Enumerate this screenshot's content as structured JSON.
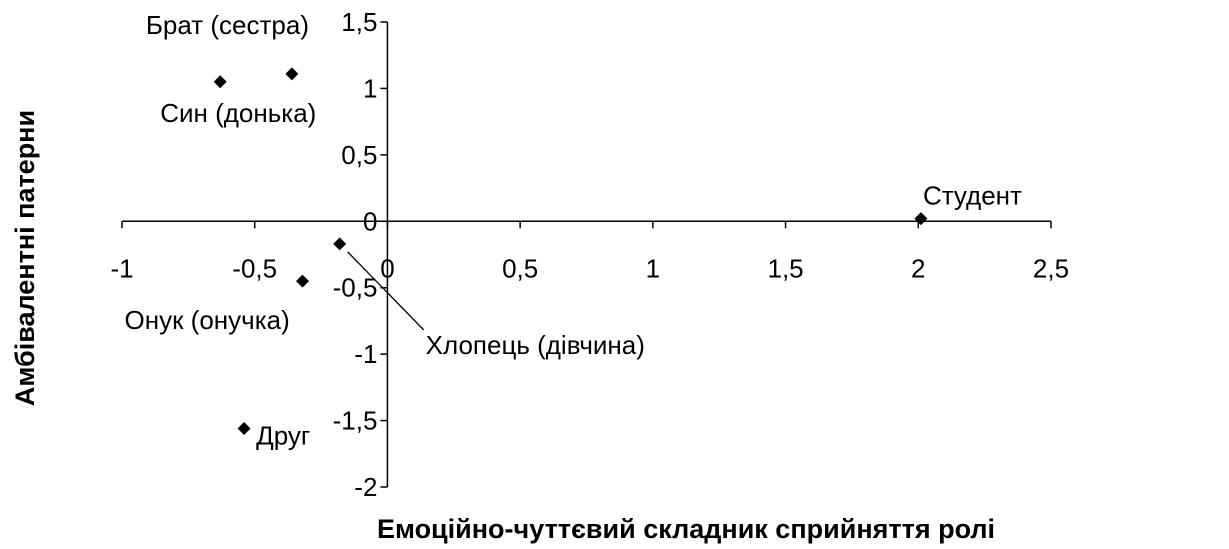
{
  "chart_data": {
    "type": "scatter",
    "title": "",
    "xlabel": "Емоційно-чуттєвий складник сприйняття ролі",
    "ylabel": "Амбівалентні патерни",
    "xlim": [
      -1,
      2.5
    ],
    "ylim": [
      -2,
      1.5
    ],
    "xticks": [
      "-1",
      "-0,5",
      "0",
      "0,5",
      "1",
      "1,5",
      "2",
      "2,5"
    ],
    "yticks": [
      "1,5",
      "1",
      "0,5",
      "0",
      "-0,5",
      "-1",
      "-1,5",
      "-2"
    ],
    "marker_color": "#000000",
    "grid": false,
    "points": [
      {
        "label": "Брат (сестра)",
        "x": -0.36,
        "y": 1.11
      },
      {
        "label": "Син (донька)",
        "x": -0.63,
        "y": 1.05
      },
      {
        "label": "Студент",
        "x": 2.01,
        "y": 0.02
      },
      {
        "label": "Хлопець (дівчина)",
        "x": -0.18,
        "y": -0.17
      },
      {
        "label": "Онук (онучка)",
        "x": -0.32,
        "y": -0.45
      },
      {
        "label": "Друг",
        "x": -0.54,
        "y": -1.56
      }
    ]
  }
}
